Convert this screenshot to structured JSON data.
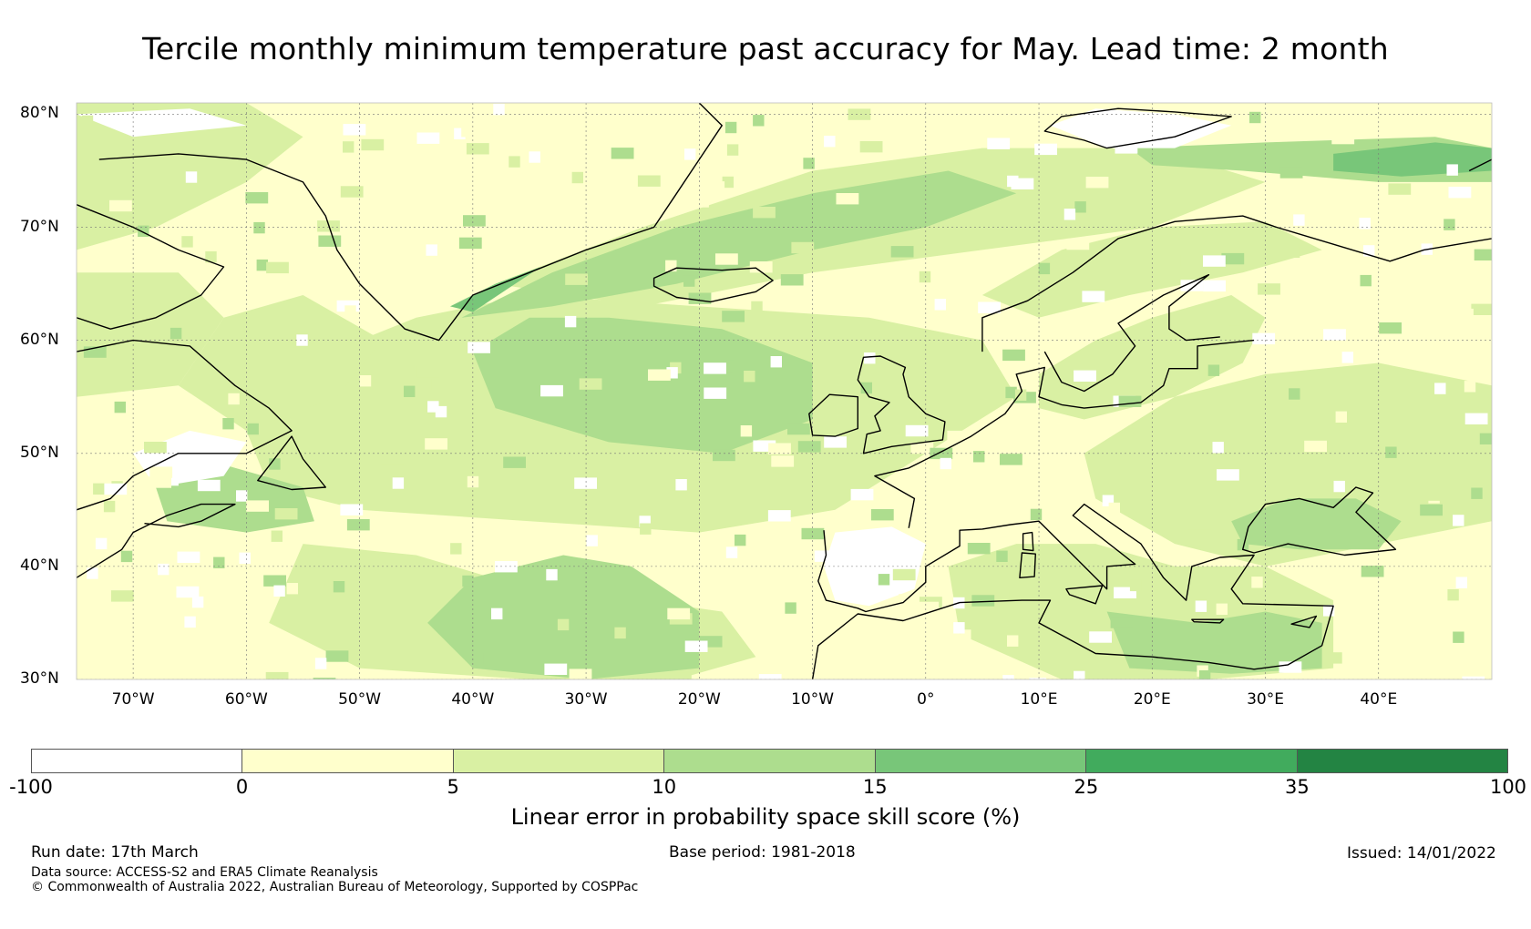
{
  "title": "Tercile monthly minimum temperature past accuracy for May. Lead time: 2 month",
  "map": {
    "lat_labels": [
      "80°N",
      "70°N",
      "60°N",
      "50°N",
      "40°N",
      "30°N"
    ],
    "lon_labels": [
      "70°W",
      "60°W",
      "50°W",
      "40°W",
      "30°W",
      "20°W",
      "10°W",
      "0°",
      "10°E",
      "20°E",
      "30°E",
      "40°E"
    ],
    "extent": {
      "lon_min": -75,
      "lon_max": 50,
      "lat_min": 30,
      "lat_max": 81
    },
    "background_color": "#ffffcc"
  },
  "colorbar": {
    "ticks": [
      "-100",
      "0",
      "5",
      "10",
      "15",
      "25",
      "35",
      "100"
    ],
    "colors": [
      "#ffffff",
      "#ffffcc",
      "#d9f0a3",
      "#addd8e",
      "#78c679",
      "#41ab5d",
      "#238443"
    ],
    "label": "Linear error in probability space skill score (%)"
  },
  "footer": {
    "run_date": "Run date: 17th March",
    "base_period": "Base period: 1981-2018",
    "issued": "Issued: 14/01/2022",
    "data_source": "Data source: ACCESS-S2 and ERA5 Climate Reanalysis",
    "copyright": "© Commonwealth of Australia 2022, Australian Bureau of Meteorology, Supported by COSPPac"
  }
}
